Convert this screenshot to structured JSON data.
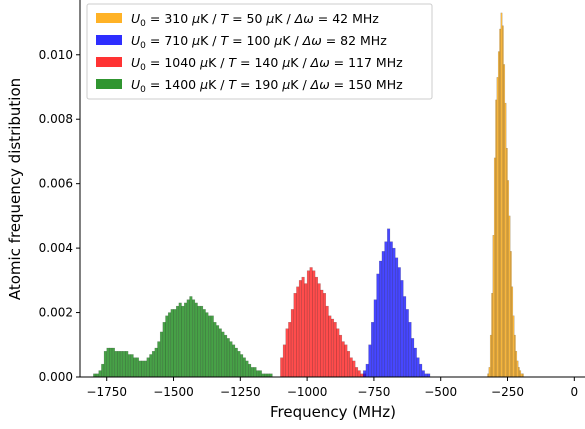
{
  "chart_data": {
    "type": "bar",
    "xlabel": "Frequency (MHz)",
    "ylabel": "Atomic frequency distribution",
    "xlim": [
      -1850,
      40
    ],
    "ylim": [
      0,
      0.0117
    ],
    "x_ticks": [
      -1750,
      -1500,
      -1250,
      -1000,
      -750,
      -500,
      -250,
      0
    ],
    "y_ticks": [
      0.0,
      0.002,
      0.004,
      0.006,
      0.008,
      0.01
    ],
    "x_tick_labels": [
      "−1750",
      "−1500",
      "−1250",
      "−1000",
      "−750",
      "−500",
      "−250",
      "0"
    ],
    "y_tick_labels": [
      "0.000",
      "0.002",
      "0.004",
      "0.006",
      "0.008",
      "0.010"
    ],
    "legend_position": "upper-left",
    "series": [
      {
        "name": "U0 = 1400 μK / T = 190 μK / Δω = 150 MHz",
        "legend": {
          "u0": "1400",
          "t": "190",
          "dw": "150"
        },
        "color": "#138613",
        "opacity": 0.78,
        "bin_start": -1800,
        "bin_width": 10,
        "values": [
          0.0001,
          0.0001,
          0.0002,
          0.0004,
          0.0008,
          0.0009,
          0.0009,
          0.0009,
          0.0008,
          0.0008,
          0.0008,
          0.0008,
          0.0008,
          0.0007,
          0.0007,
          0.0006,
          0.0006,
          0.0005,
          0.0005,
          0.0005,
          0.0006,
          0.0007,
          0.0008,
          0.0009,
          0.0011,
          0.0014,
          0.0017,
          0.0019,
          0.002,
          0.0021,
          0.0021,
          0.0022,
          0.0023,
          0.0022,
          0.0023,
          0.0024,
          0.0025,
          0.0024,
          0.0023,
          0.0022,
          0.0022,
          0.0021,
          0.002,
          0.0019,
          0.0019,
          0.0017,
          0.0016,
          0.0015,
          0.0014,
          0.0013,
          0.0012,
          0.0011,
          0.001,
          0.0009,
          0.0008,
          0.0007,
          0.0006,
          0.0005,
          0.0004,
          0.0003,
          0.0003,
          0.0002,
          0.0002,
          0.0001,
          0.0001,
          0.0001,
          0.0001
        ]
      },
      {
        "name": "U0 = 1040 μK / T = 140 μK / Δω = 117 MHz",
        "legend": {
          "u0": "1040",
          "t": "140",
          "dw": "117"
        },
        "color": "#ff0000",
        "opacity": 0.7,
        "bin_start": -1100,
        "bin_width": 10,
        "values": [
          0.0006,
          0.001,
          0.0015,
          0.0017,
          0.0021,
          0.0026,
          0.0028,
          0.003,
          0.0031,
          0.0029,
          0.0033,
          0.0034,
          0.0033,
          0.0031,
          0.0029,
          0.0027,
          0.0026,
          0.0022,
          0.0019,
          0.0018,
          0.0017,
          0.0015,
          0.0013,
          0.0011,
          0.001,
          0.0008,
          0.0006,
          0.0005,
          0.0003,
          0.0002,
          0.0001,
          0.0001
        ]
      },
      {
        "name": "U0 = 710 μK / T = 100 μK / Δω = 82 MHz",
        "legend": {
          "u0": "710",
          "t": "100",
          "dw": "82"
        },
        "color": "#0000ff",
        "opacity": 0.72,
        "bin_start": -790,
        "bin_width": 10,
        "values": [
          0.0002,
          0.0004,
          0.001,
          0.0017,
          0.0024,
          0.0032,
          0.0036,
          0.0039,
          0.0042,
          0.0046,
          0.0042,
          0.004,
          0.0037,
          0.0034,
          0.003,
          0.0025,
          0.0021,
          0.0017,
          0.0012,
          0.0009,
          0.0006,
          0.0004,
          0.0002,
          0.0001,
          0.0001
        ]
      },
      {
        "name": "U0 = 310 μK / T = 50 μK / Δω = 42 MHz",
        "legend": {
          "u0": "310",
          "t": "50",
          "dw": "42"
        },
        "color": "#ffa500",
        "opacity": 0.75,
        "bin_start": -325,
        "bin_width": 5,
        "values": [
          0.0001,
          0.0003,
          0.0013,
          0.0026,
          0.0044,
          0.0068,
          0.0086,
          0.0093,
          0.0101,
          0.0108,
          0.0113,
          0.0109,
          0.0097,
          0.0085,
          0.0071,
          0.0061,
          0.005,
          0.0039,
          0.0028,
          0.0019,
          0.0013,
          0.0008,
          0.0005,
          0.0003,
          0.0002,
          0.0001,
          0.0001
        ]
      }
    ]
  },
  "legend_text": {
    "u0_symbol": "U",
    "u0_sub": "0",
    "eq": " = ",
    "mu": "μ",
    "kelvin": "K",
    "sep": " / ",
    "t_symbol": "T",
    "dw_symbol": "Δω",
    "mhz": "MHz"
  }
}
